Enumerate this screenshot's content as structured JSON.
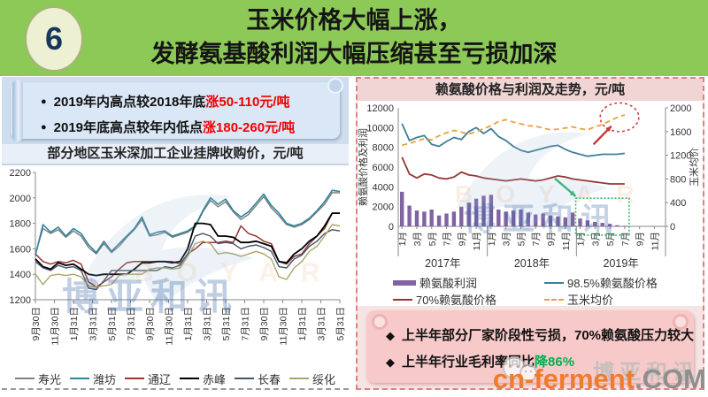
{
  "header": {
    "badge": "6",
    "title_line1": "玉米价格大幅上涨，",
    "title_line2": "发酵氨基酸利润大幅压缩甚至亏损加深"
  },
  "left_panel": {
    "bullets": [
      {
        "lead": "●",
        "text": "2019年内高点较2018年底",
        "highlight": "涨50-110元/吨"
      },
      {
        "lead": "●",
        "text": "2019年底高点较年内低点",
        "highlight": "涨180-260元/吨"
      }
    ],
    "chart_title": "部分地区玉米深加工企业挂牌收购价，元/吨"
  },
  "right_panel": {
    "chart_title": "赖氨酸价格与利润及走势，元/吨",
    "bullets": [
      {
        "lead": "◆",
        "text": "上半年部分厂家阶段性亏损，70%赖氨酸压力较大",
        "highlight": ""
      },
      {
        "lead": "◆",
        "text": "上半年行业毛利率同比",
        "highlight": "降86%"
      }
    ],
    "highlight_color": "#00b050"
  },
  "watermark": {
    "boyar_cn": "博亚和讯",
    "boyar_en": "BOYAR",
    "site_name": "cn-ferment",
    "site_tld": ".COM"
  },
  "colors": {
    "header_green": "#8dc957",
    "red_text": "#f00000",
    "green_text": "#00b050",
    "panel_blue": "#cfdeee",
    "panel_pink": "#f6e3e3"
  },
  "chart_data": [
    {
      "type": "line",
      "title": "部分地区玉米深加工企业挂牌收购价，元/吨",
      "ylim": [
        1200,
        2200
      ],
      "yticks": [
        1200,
        1400,
        1600,
        1800,
        2000,
        2200
      ],
      "grid": false,
      "legend_position": "bottom",
      "x_labels": [
        "9月30日",
        "11月30日",
        "1月31日",
        "3月31日",
        "5月31日",
        "7月31日",
        "9月30日",
        "11月30日",
        "1月31日",
        "3月31日",
        "5月31日",
        "7月31日",
        "9月30日",
        "11月30日",
        "1月31日",
        "3月31日",
        "5月31日"
      ],
      "series": [
        {
          "name": "寿光",
          "color": "#7f7f7f",
          "width": 1.4,
          "values": [
            1560,
            1760,
            1720,
            1750,
            1690,
            1740,
            1700,
            1610,
            1560,
            1640,
            1570,
            1620,
            1690,
            1750,
            1830,
            1700,
            1710,
            1730,
            1690,
            1710,
            1730,
            1770,
            1890,
            1980,
            1930,
            1970,
            1890,
            1830,
            1870,
            1940,
            2010,
            1920,
            1860,
            1790,
            1770,
            1790,
            1830,
            1890,
            1950,
            2040,
            2040
          ]
        },
        {
          "name": "潍坊",
          "color": "#31859c",
          "width": 1.6,
          "values": [
            1550,
            1790,
            1730,
            1770,
            1700,
            1760,
            1720,
            1630,
            1570,
            1660,
            1580,
            1640,
            1700,
            1760,
            1850,
            1710,
            1730,
            1740,
            1700,
            1720,
            1740,
            1780,
            1900,
            2000,
            1950,
            1990,
            1900,
            1850,
            1890,
            1960,
            2030,
            1940,
            1880,
            1800,
            1780,
            1800,
            1840,
            1900,
            1970,
            2060,
            2050
          ]
        },
        {
          "name": "通辽",
          "color": "#953735",
          "width": 1.5,
          "values": [
            1560,
            1500,
            1480,
            1500,
            1490,
            1510,
            1480,
            1340,
            1300,
            1340,
            1380,
            1440,
            1490,
            1500,
            1500,
            1500,
            1500,
            1500,
            1500,
            1480,
            1560,
            1600,
            1650,
            1650,
            1650,
            1660,
            1650,
            1780,
            1720,
            1700,
            1660,
            1640,
            1500,
            1480,
            1540,
            1560,
            1640,
            1700,
            1760,
            1880,
            1880
          ]
        },
        {
          "name": "赤峰",
          "color": "#000000",
          "width": 1.8,
          "values": [
            1520,
            1460,
            1440,
            1490,
            1470,
            1480,
            1440,
            1400,
            1390,
            1400,
            1400,
            1400,
            1400,
            1440,
            1490,
            1490,
            1500,
            1500,
            1490,
            1500,
            1600,
            1800,
            1800,
            1790,
            1700,
            1700,
            1690,
            1650,
            1650,
            1660,
            1640,
            1620,
            1500,
            1490,
            1560,
            1600,
            1660,
            1700,
            1780,
            1880,
            1880
          ]
        },
        {
          "name": "长春",
          "color": "#44546a",
          "width": 1.4,
          "values": [
            1500,
            1450,
            1430,
            1470,
            1450,
            1460,
            1430,
            1290,
            1280,
            1350,
            1430,
            1430,
            1430,
            1430,
            1430,
            1430,
            1430,
            1460,
            1450,
            1470,
            1560,
            1700,
            1720,
            1700,
            1640,
            1650,
            1640,
            1600,
            1620,
            1630,
            1610,
            1580,
            1460,
            1450,
            1520,
            1550,
            1620,
            1660,
            1720,
            1750,
            1740
          ]
        },
        {
          "name": "绥化",
          "color": "#a9a568",
          "width": 1.4,
          "values": [
            1400,
            1320,
            1390,
            1400,
            1390,
            1400,
            1380,
            1310,
            1300,
            1310,
            1320,
            1390,
            1400,
            1400,
            1400,
            1440,
            1450,
            1450,
            1440,
            1450,
            1540,
            1640,
            1660,
            1640,
            1560,
            1570,
            1560,
            1540,
            1560,
            1580,
            1560,
            1520,
            1380,
            1360,
            1450,
            1500,
            1580,
            1620,
            1700,
            1790,
            1780
          ]
        }
      ]
    },
    {
      "type": "bar+line",
      "title": "赖氨酸价格与利润及走势，元/吨",
      "ylabel_left": "赖氨酸价格及利润",
      "ylabel_right": "玉米均价",
      "ylim_left": [
        0,
        12000
      ],
      "yticks_left": [
        0,
        2000,
        4000,
        6000,
        8000,
        10000,
        12000
      ],
      "ylim_right": [
        0,
        2000
      ],
      "yticks_right": [
        0,
        400,
        800,
        1200,
        1600,
        2000
      ],
      "grid": false,
      "legend_position": "bottom",
      "years": [
        "2017年",
        "2018年",
        "2019年"
      ],
      "month_tick_labels": [
        "1月",
        "3月",
        "5月",
        "7月",
        "9月",
        "11月"
      ],
      "bar_series": {
        "name": "赖氨酸利润",
        "color": "#8064a2",
        "axis": "left",
        "values": [
          3500,
          2100,
          1600,
          1500,
          1700,
          1100,
          1300,
          1500,
          2000,
          2400,
          2800,
          3100,
          3200,
          1700,
          1500,
          1600,
          1700,
          1400,
          1200,
          1300,
          1100,
          1000,
          900,
          1400,
          800,
          600,
          450,
          350,
          250,
          120,
          60,
          null,
          null,
          null,
          null,
          null
        ]
      },
      "line_series": [
        {
          "name": "98.5%赖氨酸价格",
          "color": "#3f7f96",
          "axis": "left",
          "dash": "",
          "values": [
            10400,
            8700,
            9000,
            9200,
            8300,
            8100,
            8600,
            9000,
            8800,
            9600,
            10000,
            9400,
            9900,
            9100,
            8700,
            8100,
            7700,
            7500,
            7700,
            7900,
            8100,
            8200,
            7800,
            7500,
            7300,
            7100,
            7200,
            7300,
            7300,
            7300,
            7400,
            null,
            null,
            null,
            null,
            null
          ]
        },
        {
          "name": "70%赖氨酸价格",
          "color": "#953735",
          "axis": "left",
          "dash": "",
          "values": [
            7000,
            5300,
            4900,
            5300,
            5200,
            4900,
            4800,
            5000,
            5500,
            5200,
            5100,
            4900,
            4800,
            4700,
            4600,
            4700,
            4800,
            4700,
            4600,
            4700,
            4900,
            5100,
            5000,
            4800,
            4700,
            4600,
            4500,
            4400,
            4300,
            4300,
            4300,
            null,
            null,
            null,
            null,
            null
          ]
        },
        {
          "name": "玉米均价",
          "color": "#e8a23c",
          "axis": "right",
          "dash": "6,4",
          "values": [
            1370,
            1400,
            1440,
            1480,
            1460,
            1530,
            1580,
            1620,
            1590,
            1560,
            1600,
            1650,
            1700,
            1770,
            1800,
            1760,
            1730,
            1700,
            1690,
            1660,
            1630,
            1640,
            1660,
            1680,
            1650,
            1630,
            1680,
            1720,
            1780,
            1840,
            1880,
            null,
            null,
            null,
            null,
            null
          ]
        }
      ],
      "annotations": [
        {
          "type": "ellipse",
          "month": 29.3,
          "v_left": 11050,
          "rx_months": 2.6,
          "ry_left": 1450,
          "color": "#d84040"
        },
        {
          "type": "arrow",
          "from_month": 25.8,
          "from_v": 8300,
          "to_month": 28.2,
          "to_v": 10150,
          "color": "#c93636"
        },
        {
          "type": "rect",
          "from_month": 23.4,
          "to_month": 30.6,
          "top_v": 2850,
          "color": "#2eb86f"
        },
        {
          "type": "arrow",
          "from_month": 20.6,
          "from_v": 4850,
          "to_month": 23.4,
          "to_v": 3050,
          "color": "#2eb86f"
        }
      ]
    }
  ]
}
